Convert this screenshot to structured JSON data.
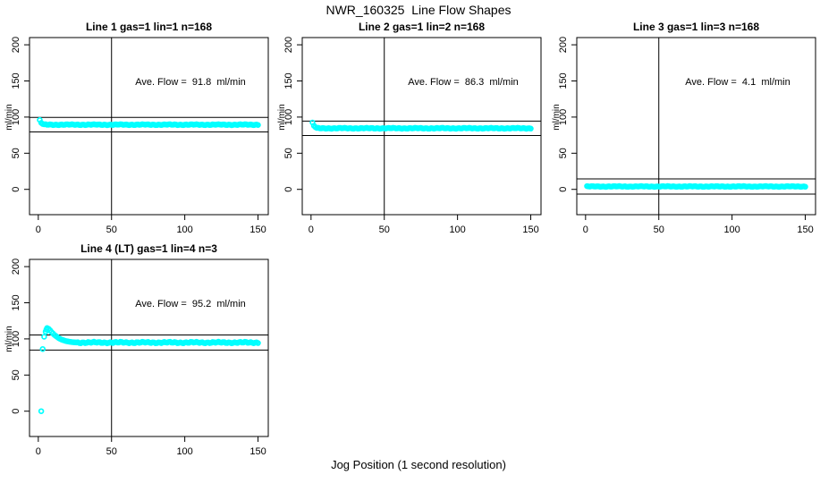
{
  "page": {
    "title": "NWR_160325  Line Flow Shapes",
    "bottom_axis_label": "Jog Position (1 second resolution)"
  },
  "chart_data": {
    "type": "scatter",
    "layout": "4 panels: 3 on top row, 1 bottom-left; shared axes style",
    "marker": "open-circle",
    "marker_color": "#00FFFF",
    "axis_color": "#000000",
    "xlabel": "Jog Position (1 second resolution)",
    "ylabel": "ml/min",
    "xlim": [
      -6,
      157
    ],
    "ylim": [
      -35,
      210
    ],
    "x_ticks": [
      0,
      50,
      100,
      150
    ],
    "y_ticks": [
      0,
      50,
      100,
      150,
      200
    ],
    "vline_x": 50,
    "grid": false,
    "panels": [
      {
        "title": "Line 1 gas=1 lin=1 n=168",
        "annotation": "Ave. Flow =  91.8  ml/min",
        "ave_flow": 91.8,
        "hlines": [
          99.5,
          79.5
        ],
        "points_head": [
          [
            1,
            96
          ],
          [
            2,
            92
          ],
          [
            3,
            90.5
          ]
        ],
        "steady": {
          "x_from": 4,
          "x_to": 150,
          "step": 1,
          "value": 89.5,
          "wobble": 0.7
        }
      },
      {
        "title": "Line 2 gas=1 lin=2 n=168",
        "annotation": "Ave. Flow =  86.3  ml/min",
        "ave_flow": 86.3,
        "hlines": [
          94.5,
          74.5
        ],
        "points_head": [
          [
            1,
            92.5
          ],
          [
            2,
            88
          ],
          [
            3,
            86
          ]
        ],
        "steady": {
          "x_from": 4,
          "x_to": 150,
          "step": 1,
          "value": 84.5,
          "wobble": 0.7
        }
      },
      {
        "title": "Line 3 gas=1 lin=3 n=168",
        "annotation": "Ave. Flow =  4.1  ml/min",
        "ave_flow": 4.1,
        "hlines": [
          14.5,
          -6.5
        ],
        "points_head": [
          [
            1,
            4.5
          ]
        ],
        "steady": {
          "x_from": 2,
          "x_to": 150,
          "step": 1,
          "value": 4,
          "wobble": 0.6
        }
      },
      {
        "title": "Line 4 (LT) gas=1 lin=4 n=3",
        "annotation": "Ave. Flow =  95.2  ml/min",
        "ave_flow": 95.2,
        "hlines": [
          105.5,
          84.5
        ],
        "points_head": [
          [
            2,
            0
          ],
          [
            3,
            86
          ],
          [
            4,
            103
          ],
          [
            5,
            110
          ],
          [
            5.5,
            113
          ],
          [
            6,
            115
          ],
          [
            7,
            114
          ],
          [
            8,
            112
          ],
          [
            9,
            109.5
          ],
          [
            10,
            107.5
          ],
          [
            11,
            105.5
          ],
          [
            12,
            104
          ],
          [
            13,
            102.5
          ],
          [
            14,
            101
          ],
          [
            15,
            100
          ],
          [
            16,
            99
          ],
          [
            17,
            98.3
          ],
          [
            18,
            97.6
          ],
          [
            19,
            97
          ],
          [
            20,
            96.6
          ],
          [
            21,
            96.2
          ],
          [
            22,
            95.9
          ],
          [
            23,
            95.6
          ],
          [
            24,
            95.4
          ],
          [
            25,
            95.2
          ]
        ],
        "steady": {
          "x_from": 26,
          "x_to": 150,
          "step": 1,
          "value": 95,
          "wobble": 1.1
        }
      }
    ]
  }
}
